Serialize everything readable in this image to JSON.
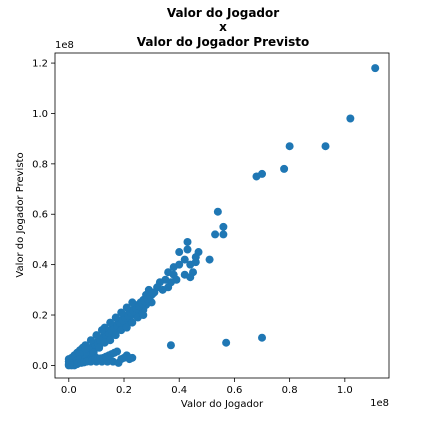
{
  "chart_data": {
    "type": "scatter",
    "title_lines": [
      "Valor do Jogador",
      "x",
      "Valor do Jogador Previsto"
    ],
    "xlabel": "Valor do Jogador",
    "ylabel": "Valor do Jogador Previsto",
    "x_offset_label": "1e8",
    "y_offset_label": "1e8",
    "xlim": [
      -0.05,
      1.16
    ],
    "ylim": [
      -0.05,
      1.24
    ],
    "x_ticks": [
      0.0,
      0.2,
      0.4,
      0.6,
      0.8,
      1.0
    ],
    "x_tick_labels": [
      "0.0",
      "0.2",
      "0.4",
      "0.6",
      "0.8",
      "1.0"
    ],
    "y_ticks": [
      0.0,
      0.2,
      0.4,
      0.6,
      0.8,
      1.0,
      1.2
    ],
    "y_tick_labels": [
      "0.0",
      "0.2",
      "0.4",
      "0.6",
      "0.8",
      "1.0",
      "1.2"
    ],
    "grid": false,
    "marker_color": "#1f77b4",
    "points": [
      [
        1.11,
        1.18
      ],
      [
        1.02,
        0.98
      ],
      [
        0.93,
        0.87
      ],
      [
        0.8,
        0.87
      ],
      [
        0.78,
        0.78
      ],
      [
        0.7,
        0.76
      ],
      [
        0.68,
        0.75
      ],
      [
        0.7,
        0.11
      ],
      [
        0.57,
        0.09
      ],
      [
        0.37,
        0.08
      ],
      [
        0.54,
        0.61
      ],
      [
        0.56,
        0.55
      ],
      [
        0.53,
        0.52
      ],
      [
        0.56,
        0.52
      ],
      [
        0.51,
        0.42
      ],
      [
        0.47,
        0.45
      ],
      [
        0.46,
        0.43
      ],
      [
        0.46,
        0.41
      ],
      [
        0.43,
        0.49
      ],
      [
        0.43,
        0.46
      ],
      [
        0.4,
        0.45
      ],
      [
        0.42,
        0.42
      ],
      [
        0.4,
        0.4
      ],
      [
        0.38,
        0.39
      ],
      [
        0.44,
        0.4
      ],
      [
        0.45,
        0.37
      ],
      [
        0.42,
        0.36
      ],
      [
        0.44,
        0.35
      ],
      [
        0.39,
        0.34
      ],
      [
        0.37,
        0.33
      ],
      [
        0.38,
        0.36
      ],
      [
        0.36,
        0.37
      ],
      [
        0.35,
        0.34
      ],
      [
        0.36,
        0.31
      ],
      [
        0.33,
        0.33
      ],
      [
        0.32,
        0.31
      ],
      [
        0.34,
        0.3
      ],
      [
        0.31,
        0.29
      ],
      [
        0.3,
        0.28
      ],
      [
        0.29,
        0.3
      ],
      [
        0.29,
        0.27
      ],
      [
        0.28,
        0.28
      ],
      [
        0.27,
        0.26
      ],
      [
        0.3,
        0.25
      ],
      [
        0.28,
        0.24
      ],
      [
        0.26,
        0.25
      ],
      [
        0.25,
        0.24
      ],
      [
        0.27,
        0.22
      ],
      [
        0.24,
        0.23
      ],
      [
        0.23,
        0.22
      ],
      [
        0.25,
        0.21
      ],
      [
        0.22,
        0.21
      ],
      [
        0.24,
        0.2
      ],
      [
        0.21,
        0.2
      ],
      [
        0.22,
        0.19
      ],
      [
        0.2,
        0.19
      ],
      [
        0.22,
        0.17
      ],
      [
        0.19,
        0.18
      ],
      [
        0.2,
        0.17
      ],
      [
        0.18,
        0.17
      ],
      [
        0.19,
        0.16
      ],
      [
        0.17,
        0.16
      ],
      [
        0.18,
        0.15
      ],
      [
        0.16,
        0.15
      ],
      [
        0.17,
        0.14
      ],
      [
        0.15,
        0.14
      ],
      [
        0.16,
        0.13
      ],
      [
        0.14,
        0.13
      ],
      [
        0.15,
        0.12
      ],
      [
        0.13,
        0.12
      ],
      [
        0.14,
        0.11
      ],
      [
        0.12,
        0.11
      ],
      [
        0.13,
        0.1
      ],
      [
        0.11,
        0.1
      ],
      [
        0.12,
        0.09
      ],
      [
        0.1,
        0.09
      ],
      [
        0.11,
        0.08
      ],
      [
        0.09,
        0.08
      ],
      [
        0.1,
        0.07
      ],
      [
        0.08,
        0.07
      ],
      [
        0.09,
        0.065
      ],
      [
        0.07,
        0.06
      ],
      [
        0.08,
        0.055
      ],
      [
        0.06,
        0.05
      ],
      [
        0.07,
        0.045
      ],
      [
        0.05,
        0.04
      ],
      [
        0.06,
        0.035
      ],
      [
        0.04,
        0.03
      ],
      [
        0.05,
        0.028
      ],
      [
        0.03,
        0.022
      ],
      [
        0.04,
        0.02
      ],
      [
        0.02,
        0.015
      ],
      [
        0.03,
        0.012
      ],
      [
        0.01,
        0.008
      ],
      [
        0.02,
        0.006
      ],
      [
        0.005,
        0.004
      ],
      [
        0.012,
        0.002
      ],
      [
        0.0,
        0.0
      ],
      [
        0.008,
        0.01
      ],
      [
        0.015,
        0.02
      ],
      [
        0.025,
        0.018
      ],
      [
        0.035,
        0.03
      ],
      [
        0.045,
        0.038
      ],
      [
        0.055,
        0.047
      ],
      [
        0.065,
        0.052
      ],
      [
        0.075,
        0.062
      ],
      [
        0.085,
        0.072
      ],
      [
        0.095,
        0.082
      ],
      [
        0.105,
        0.088
      ],
      [
        0.115,
        0.098
      ],
      [
        0.125,
        0.108
      ],
      [
        0.135,
        0.118
      ],
      [
        0.145,
        0.128
      ],
      [
        0.155,
        0.138
      ],
      [
        0.165,
        0.148
      ],
      [
        0.175,
        0.158
      ],
      [
        0.185,
        0.168
      ],
      [
        0.195,
        0.178
      ],
      [
        0.205,
        0.188
      ],
      [
        0.215,
        0.198
      ],
      [
        0.225,
        0.208
      ],
      [
        0.235,
        0.215
      ],
      [
        0.245,
        0.225
      ],
      [
        0.255,
        0.235
      ],
      [
        0.265,
        0.245
      ],
      [
        0.275,
        0.255
      ],
      [
        0.285,
        0.265
      ],
      [
        0.295,
        0.275
      ],
      [
        0.305,
        0.285
      ],
      [
        0.13,
        0.15
      ],
      [
        0.15,
        0.17
      ],
      [
        0.17,
        0.19
      ],
      [
        0.19,
        0.21
      ],
      [
        0.21,
        0.23
      ],
      [
        0.23,
        0.25
      ],
      [
        0.1,
        0.12
      ],
      [
        0.08,
        0.1
      ],
      [
        0.06,
        0.08
      ],
      [
        0.12,
        0.14
      ],
      [
        0.09,
        0.05
      ],
      [
        0.11,
        0.07
      ],
      [
        0.13,
        0.09
      ],
      [
        0.15,
        0.1
      ],
      [
        0.17,
        0.12
      ],
      [
        0.19,
        0.14
      ],
      [
        0.21,
        0.15
      ],
      [
        0.23,
        0.17
      ],
      [
        0.25,
        0.19
      ],
      [
        0.27,
        0.2
      ],
      [
        0.02,
        0.04
      ],
      [
        0.03,
        0.05
      ],
      [
        0.04,
        0.06
      ],
      [
        0.01,
        0.03
      ],
      [
        0.05,
        0.07
      ],
      [
        0.02,
        0.025
      ],
      [
        0.03,
        0.035
      ],
      [
        0.01,
        0.015
      ],
      [
        0.04,
        0.045
      ],
      [
        0.06,
        0.065
      ],
      [
        0.005,
        0.02
      ],
      [
        0.01,
        0.025
      ],
      [
        0.015,
        0.03
      ],
      [
        0.0,
        0.015
      ],
      [
        0.0,
        0.025
      ],
      [
        0.02,
        0.01
      ],
      [
        0.03,
        0.02
      ],
      [
        0.04,
        0.025
      ],
      [
        0.05,
        0.02
      ],
      [
        0.06,
        0.025
      ],
      [
        0.07,
        0.02
      ],
      [
        0.08,
        0.025
      ],
      [
        0.09,
        0.02
      ],
      [
        0.1,
        0.03
      ],
      [
        0.11,
        0.02
      ],
      [
        0.12,
        0.025
      ],
      [
        0.13,
        0.03
      ],
      [
        0.14,
        0.02
      ],
      [
        0.06,
        0.015
      ],
      [
        0.08,
        0.015
      ],
      [
        0.1,
        0.015
      ],
      [
        0.12,
        0.015
      ],
      [
        0.14,
        0.015
      ],
      [
        0.16,
        0.015
      ],
      [
        0.18,
        0.01
      ],
      [
        0.21,
        0.04
      ],
      [
        0.2,
        0.03
      ],
      [
        0.23,
        0.03
      ],
      [
        0.19,
        0.025
      ],
      [
        0.22,
        0.025
      ],
      [
        0.0,
        0.005
      ],
      [
        0.005,
        0.01
      ],
      [
        0.01,
        0.0
      ],
      [
        0.02,
        0.0
      ],
      [
        0.03,
        0.005
      ],
      [
        0.035,
        0.01
      ],
      [
        0.045,
        0.01
      ],
      [
        0.055,
        0.012
      ],
      [
        0.065,
        0.015
      ],
      [
        0.075,
        0.018
      ],
      [
        0.085,
        0.02
      ],
      [
        0.095,
        0.022
      ],
      [
        0.105,
        0.025
      ],
      [
        0.115,
        0.028
      ],
      [
        0.125,
        0.03
      ],
      [
        0.135,
        0.035
      ],
      [
        0.145,
        0.04
      ],
      [
        0.155,
        0.045
      ],
      [
        0.165,
        0.05
      ],
      [
        0.175,
        0.055
      ]
    ]
  }
}
